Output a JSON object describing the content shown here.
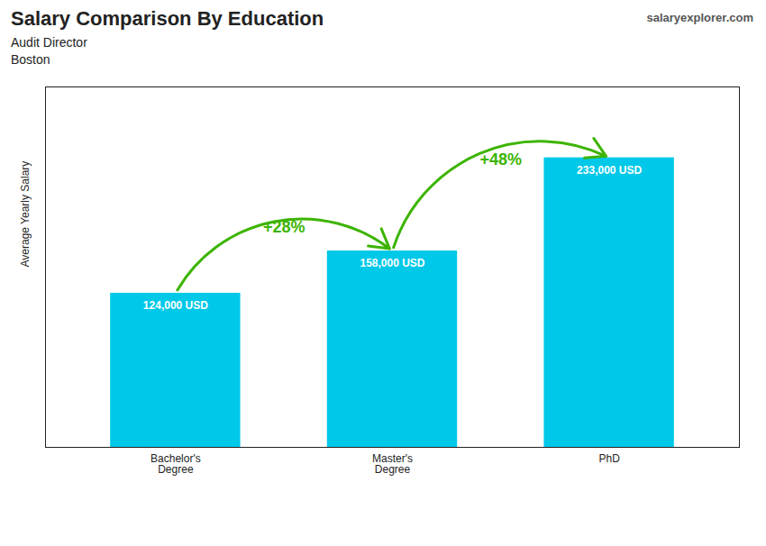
{
  "chart_data": {
    "type": "bar",
    "title": "Salary Comparison By Education",
    "subtitle": [
      "Audit Director",
      "Boston"
    ],
    "source": "salaryexplorer.com",
    "ylabel": "Average Yearly Salary",
    "categories": [
      "Bachelor's\nDegree",
      "Master's\nDegree",
      "PhD"
    ],
    "values": [
      124000,
      158000,
      233000
    ],
    "value_labels": [
      "124,000 USD",
      "158,000 USD",
      "233,000 USD"
    ],
    "data_labels": true,
    "annotations": [
      "+28%",
      "+48%"
    ],
    "color": "#00c8e8",
    "ylim": [
      0,
      290000
    ],
    "grid": false,
    "tick_labels": "x"
  }
}
